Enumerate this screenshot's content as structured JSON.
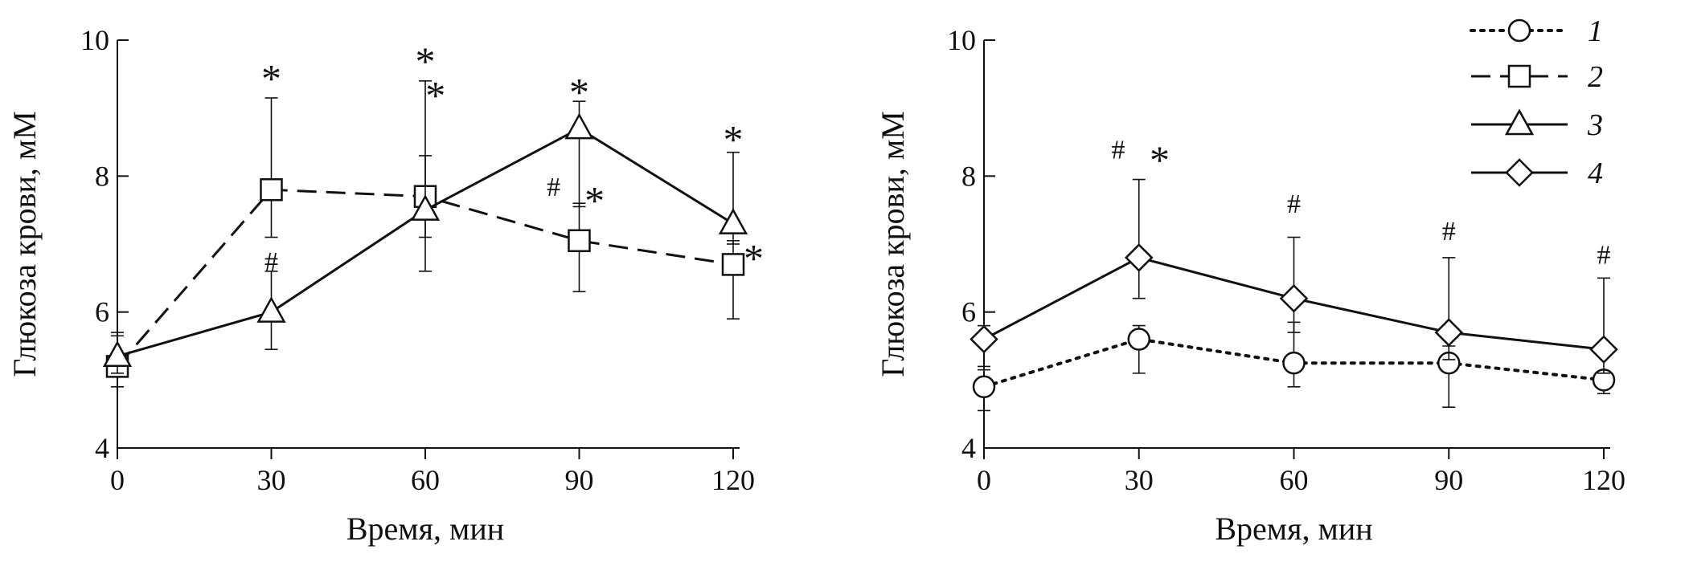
{
  "chart_data": [
    {
      "type": "line",
      "xlabel": "Время, мин",
      "ylabel": "Глюкоза крови, мМ",
      "xlim": [
        0,
        120
      ],
      "ylim": [
        4,
        10
      ],
      "xticks": [
        0,
        30,
        60,
        90,
        120
      ],
      "xtick_labels": [
        "0",
        "30",
        "60",
        "90",
        "120"
      ],
      "yticks": [
        4,
        6,
        8,
        10
      ],
      "ytick_labels": [
        "4",
        "6",
        "8",
        "10"
      ],
      "grid": false,
      "x": [
        0,
        30,
        60,
        90,
        120
      ],
      "series": [
        {
          "name": "2",
          "marker": "square",
          "line": "dashed",
          "values": [
            5.2,
            7.8,
            7.7,
            7.05,
            6.7
          ],
          "error_upper": [
            5.7,
            9.15,
            9.4,
            7.6,
            7.05
          ],
          "error_lower": [
            4.9,
            7.1,
            6.6,
            6.3,
            5.9
          ]
        },
        {
          "name": "3",
          "marker": "triangle",
          "line": "solid",
          "values": [
            5.35,
            6.0,
            7.5,
            8.7,
            7.3
          ],
          "error_upper": [
            5.65,
            6.6,
            8.3,
            9.1,
            8.35
          ],
          "error_lower": [
            5.1,
            5.45,
            7.1,
            7.55,
            7.0
          ]
        }
      ],
      "annotations": [
        {
          "text": "*",
          "x": 30,
          "y": 9.5
        },
        {
          "text": "*",
          "x": 60,
          "y": 9.75
        },
        {
          "text": "*",
          "x": 62,
          "y": 9.25
        },
        {
          "text": "*",
          "x": 90,
          "y": 9.3
        },
        {
          "text": "*",
          "x": 120,
          "y": 8.6
        },
        {
          "text": "*",
          "x": 124,
          "y": 6.85
        },
        {
          "text": "*",
          "x": 93,
          "y": 7.7
        },
        {
          "text": "#",
          "x": 30,
          "y": 6.75
        },
        {
          "text": "#",
          "x": 85,
          "y": 7.85
        }
      ]
    },
    {
      "type": "line",
      "xlabel": "Время, мин",
      "ylabel": "Глюкоза крови, мМ",
      "xlim": [
        0,
        120
      ],
      "ylim": [
        4,
        10
      ],
      "xticks": [
        0,
        30,
        60,
        90,
        120
      ],
      "xtick_labels": [
        "0",
        "30",
        "60",
        "90",
        "120"
      ],
      "yticks": [
        4,
        6,
        8,
        10
      ],
      "ytick_labels": [
        "4",
        "6",
        "8",
        "10"
      ],
      "grid": false,
      "legend_position": "top-right",
      "legend": [
        {
          "name": "1",
          "marker": "circle",
          "line": "dotted"
        },
        {
          "name": "2",
          "marker": "square",
          "line": "dashed"
        },
        {
          "name": "3",
          "marker": "triangle",
          "line": "solid"
        },
        {
          "name": "4",
          "marker": "diamond",
          "line": "solid"
        }
      ],
      "x": [
        0,
        30,
        60,
        90,
        120
      ],
      "series": [
        {
          "name": "1",
          "marker": "circle",
          "line": "dotted",
          "values": [
            4.9,
            5.6,
            5.25,
            5.25,
            5.0
          ],
          "error_upper": [
            5.2,
            5.8,
            5.85,
            5.5,
            5.1
          ],
          "error_lower": [
            4.55,
            5.1,
            4.9,
            4.6,
            4.8
          ]
        },
        {
          "name": "4",
          "marker": "diamond",
          "line": "solid",
          "values": [
            5.6,
            6.8,
            6.2,
            5.7,
            5.45
          ],
          "error_upper": [
            5.8,
            7.95,
            7.1,
            6.8,
            6.5
          ],
          "error_lower": [
            5.15,
            6.2,
            5.7,
            5.3,
            5.1
          ]
        }
      ],
      "annotations": [
        {
          "text": "#",
          "x": 26,
          "y": 8.4
        },
        {
          "text": "*",
          "x": 34,
          "y": 8.3
        },
        {
          "text": "#",
          "x": 60,
          "y": 7.6
        },
        {
          "text": "#",
          "x": 90,
          "y": 7.2
        },
        {
          "text": "#",
          "x": 120,
          "y": 6.85
        }
      ]
    }
  ]
}
